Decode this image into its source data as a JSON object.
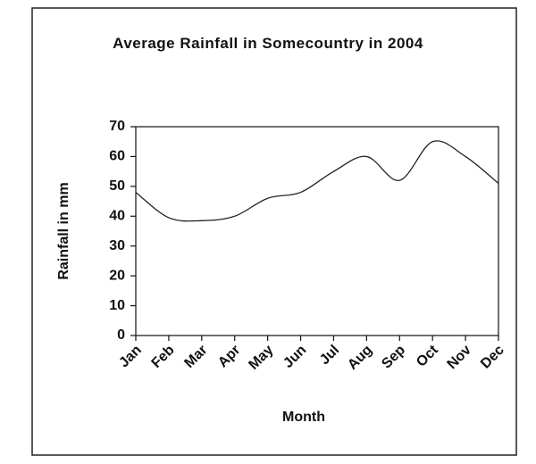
{
  "chart_data": {
    "type": "line",
    "title": "Average Rainfall in Somecountry in 2004",
    "x_label": "Month",
    "y_label": "Rainfall in mm",
    "categories": [
      "Jan",
      "Feb",
      "Mar",
      "Apr",
      "May",
      "Jun",
      "Jul",
      "Aug",
      "Sep",
      "Oct",
      "Nov",
      "Dec"
    ],
    "series": [
      {
        "name": "Rainfall",
        "color": "#222222",
        "values": [
          48,
          39.5,
          38.5,
          40,
          46,
          48,
          55,
          60,
          52,
          65,
          60,
          51
        ]
      }
    ],
    "ylim": [
      0,
      70
    ],
    "yticks": [
      0,
      10,
      20,
      30,
      40,
      50,
      60,
      70
    ],
    "grid": false,
    "legend": false
  }
}
